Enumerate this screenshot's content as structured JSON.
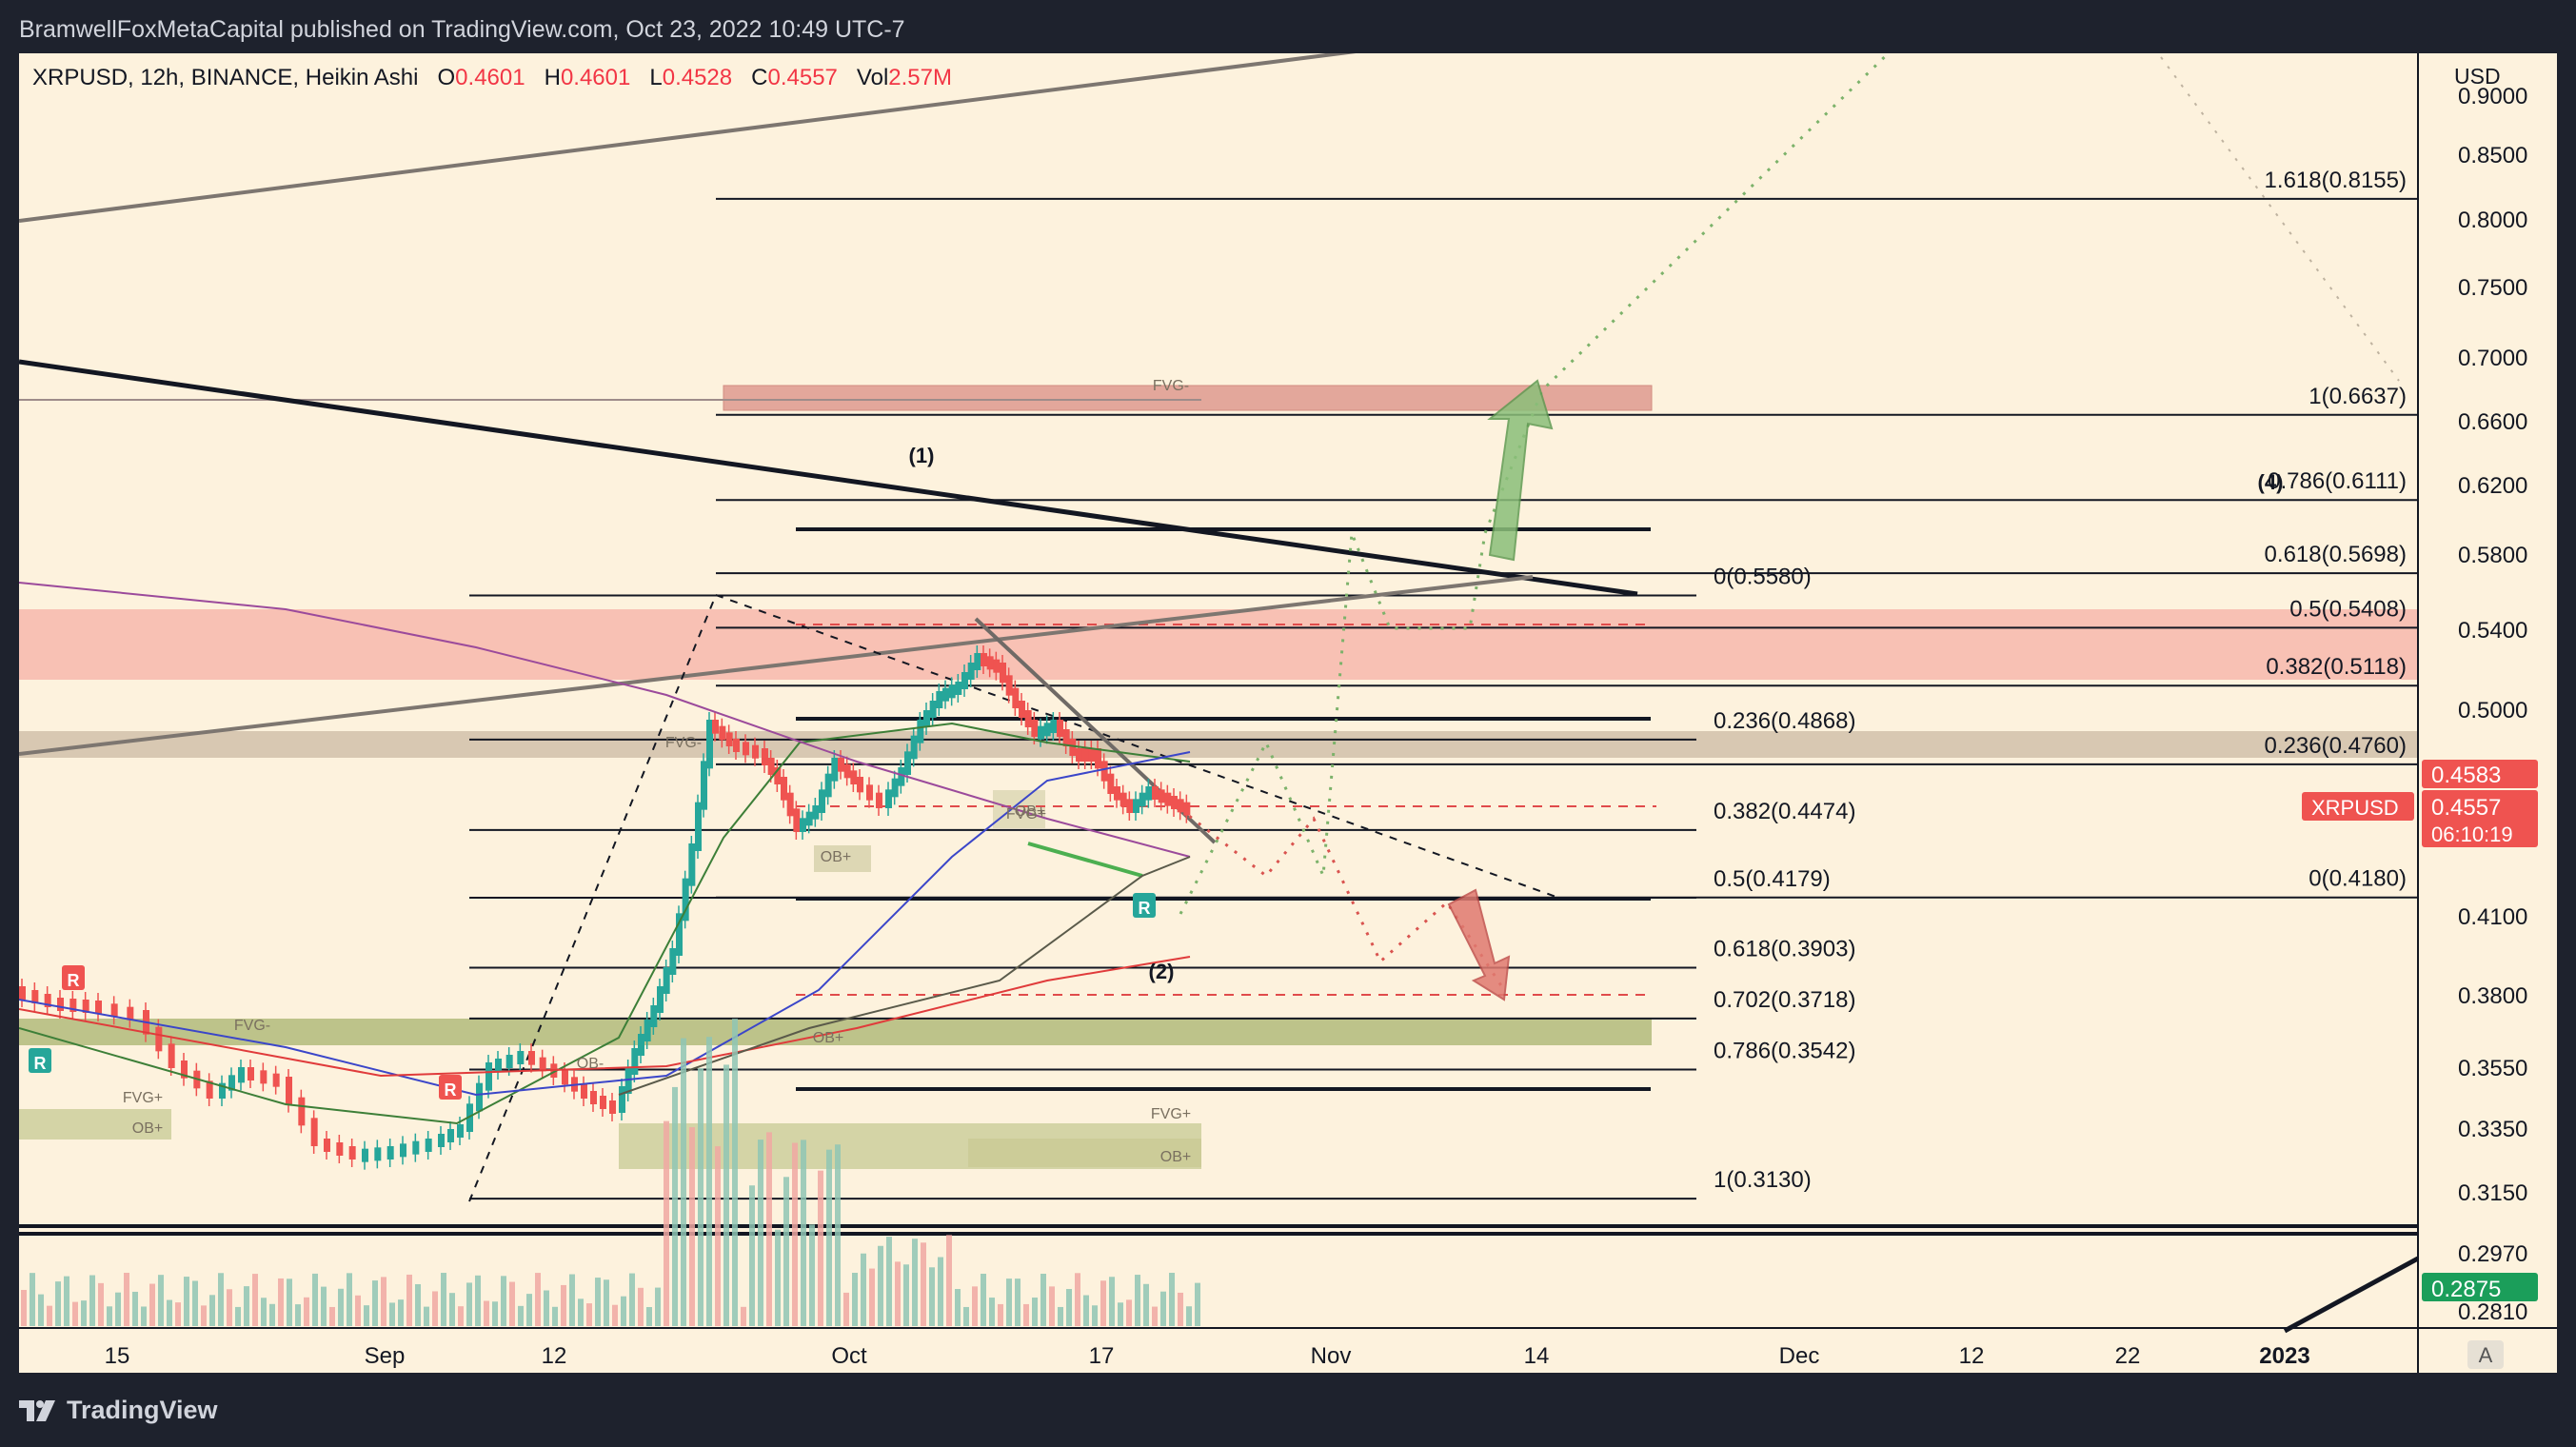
{
  "header": {
    "publisher": "BramwellFoxMetaCapital published on TradingView.com, Oct 23, 2022 10:49 UTC-7"
  },
  "legend": {
    "symbol": "XRPUSD, 12h, BINANCE, Heikin Ashi",
    "o_label": "O",
    "o_value": "0.4601",
    "h_label": "H",
    "h_value": "0.4601",
    "l_label": "L",
    "l_value": "0.4528",
    "c_label": "C",
    "c_value": "0.4557",
    "vol_label": "Vol",
    "vol_value": "2.57M"
  },
  "footer": {
    "brand": "TradingView",
    "auto_button": "A"
  },
  "colors": {
    "up": "#26a69a",
    "down": "#ef5350",
    "background": "#fdf2dd",
    "frame": "#1e222d"
  },
  "chart_data": {
    "type": "candlestick",
    "symbol": "XRPUSD",
    "timeframe": "12h",
    "exchange": "BINANCE",
    "style": "Heikin Ashi",
    "currency_label": "USD",
    "y_range": [
      0.281,
      0.9
    ],
    "y_ticks": [
      "0.9000",
      "0.8500",
      "0.8000",
      "0.7500",
      "0.7000",
      "0.6600",
      "0.6200",
      "0.5800",
      "0.5400",
      "0.5000",
      "0.4100",
      "0.3800",
      "0.3550",
      "0.3350",
      "0.3150",
      "0.2970",
      "0.2810"
    ],
    "x_ticks": [
      "15",
      "Sep",
      "12",
      "Oct",
      "17",
      "Nov",
      "14",
      "Dec",
      "12",
      "22",
      "2023"
    ],
    "price_labels": [
      {
        "text": "0.4583",
        "color": "#ef5350"
      },
      {
        "text": "XRPUSD",
        "color": "#ef5350"
      },
      {
        "text": "0.4557",
        "color": "#ef5350"
      },
      {
        "text": "06:10:19",
        "color": "#ef5350"
      },
      {
        "text": "0.2875",
        "color": "#1b9e5a"
      }
    ],
    "fib_right": [
      {
        "level": "1.618(0.8155)",
        "price": 0.8155
      },
      {
        "level": "1(0.6637)",
        "price": 0.6637
      },
      {
        "level": "0.786(0.6111)",
        "price": 0.6111
      },
      {
        "level": "0.618(0.5698)",
        "price": 0.5698
      },
      {
        "level": "0.5(0.5408)",
        "price": 0.5408
      },
      {
        "level": "0.382(0.5118)",
        "price": 0.5118
      },
      {
        "level": "0.236(0.4760)",
        "price": 0.476
      },
      {
        "level": "0(0.4180)",
        "price": 0.418
      }
    ],
    "fib_mid": [
      {
        "level": "0(0.5580)",
        "price": 0.558
      },
      {
        "level": "0.236(0.4868)",
        "price": 0.4868
      },
      {
        "level": "0.382(0.4474)",
        "price": 0.4474
      },
      {
        "level": "0.5(0.4179)",
        "price": 0.4179
      },
      {
        "level": "0.618(0.3903)",
        "price": 0.3903
      },
      {
        "level": "0.702(0.3718)",
        "price": 0.3718
      },
      {
        "level": "0.786(0.3542)",
        "price": 0.3542
      },
      {
        "level": "1(0.3130)",
        "price": 0.313
      }
    ],
    "wave_labels": [
      "(1)",
      "(2)",
      "(4)"
    ],
    "zone_labels": [
      "FVG-",
      "FVG-",
      "FVG+",
      "OB+",
      "OB+",
      "FVG-",
      "FVG+",
      "OB+",
      "OB+",
      "FVG+",
      "OB+",
      "OB-"
    ],
    "signal_labels": [
      "R",
      "R",
      "R",
      "R"
    ]
  }
}
